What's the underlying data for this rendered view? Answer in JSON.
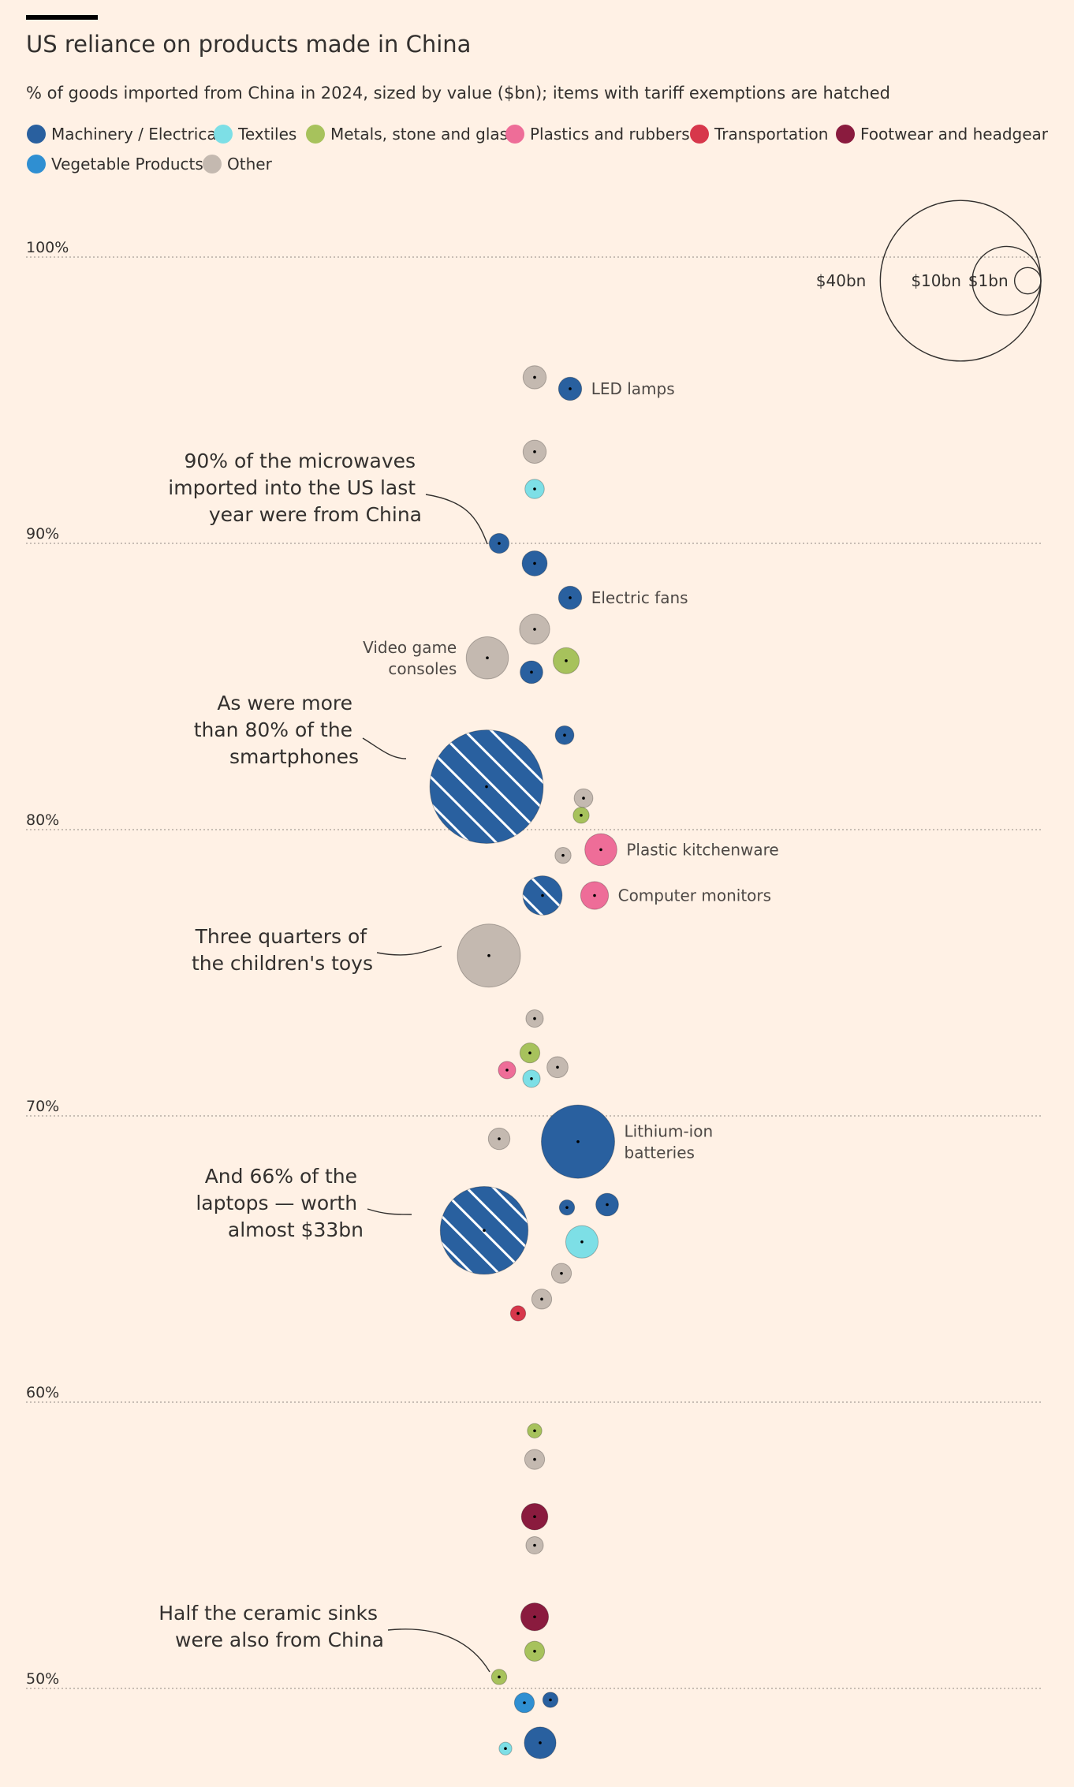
{
  "title": "US reliance on products made in China",
  "subtitle": "% of goods imported from China in 2024, sized by value ($bn); items with tariff exemptions are hatched",
  "legend": [
    {
      "label": "Machinery / Electrical",
      "color": "#29609f"
    },
    {
      "label": "Textiles",
      "color": "#7ddfe6"
    },
    {
      "label": "Metals, stone and glass",
      "color": "#a7c25c"
    },
    {
      "label": "Plastics and rubbers",
      "color": "#ee6d98"
    },
    {
      "label": "Transportation",
      "color": "#d7374b"
    },
    {
      "label": "Footwear and headgear",
      "color": "#8a1b3e"
    },
    {
      "label": "Vegetable Products",
      "color": "#2f8fd2"
    },
    {
      "label": "Other",
      "color": "#c4b9b0"
    }
  ],
  "size_key": [
    {
      "label": "$40bn",
      "value": 40
    },
    {
      "label": "$10bn",
      "value": 10
    },
    {
      "label": "$1bn",
      "value": 1
    }
  ],
  "annotations": {
    "microwaves": [
      "90% of the microwaves",
      "imported into the US last",
      "year were from China"
    ],
    "smartphones": [
      "As were more",
      "than 80% of the",
      "smartphones"
    ],
    "toys": [
      "Three quarters of",
      "the children's toys"
    ],
    "laptops": [
      "And 66% of the",
      "laptops — worth",
      "almost $33bn"
    ],
    "sinks": [
      "Half the ceramic sinks",
      "were also from China"
    ]
  },
  "chart_data": {
    "type": "scatter",
    "y_axis": {
      "ticks": [
        100,
        90,
        80,
        70,
        60,
        50
      ],
      "tick_labels": [
        "100%",
        "90%",
        "80%",
        "70%",
        "60%",
        "50%"
      ],
      "range": [
        48,
        100
      ]
    },
    "points": [
      {
        "share": 95.8,
        "value": 2.3,
        "category": "Other"
      },
      {
        "share": 95.4,
        "value": 2.3,
        "category": "Machinery / Electrical",
        "label": "LED lamps"
      },
      {
        "share": 93.2,
        "value": 2.3,
        "category": "Other"
      },
      {
        "share": 91.9,
        "value": 1.6,
        "category": "Textiles"
      },
      {
        "share": 90.0,
        "value": 1.7,
        "category": "Machinery / Electrical"
      },
      {
        "share": 89.3,
        "value": 2.7,
        "category": "Machinery / Electrical"
      },
      {
        "share": 88.1,
        "value": 2.3,
        "category": "Machinery / Electrical",
        "label": "Electric fans"
      },
      {
        "share": 87.0,
        "value": 3.9,
        "category": "Other"
      },
      {
        "share": 86.0,
        "value": 7.6,
        "category": "Other",
        "label": "Video game consoles"
      },
      {
        "share": 85.9,
        "value": 2.9,
        "category": "Metals, stone and glass"
      },
      {
        "share": 85.5,
        "value": 2.2,
        "category": "Machinery / Electrical"
      },
      {
        "share": 83.3,
        "value": 1.5,
        "category": "Machinery / Electrical"
      },
      {
        "share": 81.5,
        "value": 55,
        "category": "Machinery / Electrical",
        "hatched": true
      },
      {
        "share": 81.1,
        "value": 1.5,
        "category": "Other"
      },
      {
        "share": 80.5,
        "value": 1.1,
        "category": "Metals, stone and glass"
      },
      {
        "share": 79.3,
        "value": 4.4,
        "category": "Plastics and rubbers",
        "label": "Plastic kitchenware"
      },
      {
        "share": 79.1,
        "value": 1.1,
        "category": "Other"
      },
      {
        "share": 77.7,
        "value": 6.6,
        "category": "Machinery / Electrical",
        "hatched": true
      },
      {
        "share": 77.7,
        "value": 3.3,
        "category": "Plastics and rubbers",
        "label": "Computer monitors"
      },
      {
        "share": 75.6,
        "value": 17,
        "category": "Other"
      },
      {
        "share": 73.4,
        "value": 1.3,
        "category": "Other"
      },
      {
        "share": 72.2,
        "value": 1.7,
        "category": "Metals, stone and glass"
      },
      {
        "share": 71.7,
        "value": 1.9,
        "category": "Other"
      },
      {
        "share": 71.6,
        "value": 1.3,
        "category": "Plastics and rubbers"
      },
      {
        "share": 71.3,
        "value": 1.3,
        "category": "Textiles"
      },
      {
        "share": 69.2,
        "value": 2.0,
        "category": "Other"
      },
      {
        "share": 69.1,
        "value": 23,
        "category": "Machinery / Electrical",
        "label": "Lithium-ion batteries"
      },
      {
        "share": 66.8,
        "value": 1.0,
        "category": "Machinery / Electrical"
      },
      {
        "share": 66.9,
        "value": 2.2,
        "category": "Machinery / Electrical"
      },
      {
        "share": 66.0,
        "value": 33,
        "category": "Machinery / Electrical",
        "hatched": true
      },
      {
        "share": 65.6,
        "value": 4.5,
        "category": "Textiles"
      },
      {
        "share": 64.5,
        "value": 1.7,
        "category": "Other"
      },
      {
        "share": 63.6,
        "value": 1.7,
        "category": "Other"
      },
      {
        "share": 63.1,
        "value": 1.0,
        "category": "Transportation"
      },
      {
        "share": 59.0,
        "value": 0.9,
        "category": "Metals, stone and glass"
      },
      {
        "share": 58.0,
        "value": 1.7,
        "category": "Other"
      },
      {
        "share": 56.0,
        "value": 3.0,
        "category": "Footwear and headgear"
      },
      {
        "share": 55.0,
        "value": 1.3,
        "category": "Other"
      },
      {
        "share": 52.5,
        "value": 3.3,
        "category": "Footwear and headgear"
      },
      {
        "share": 51.3,
        "value": 1.7,
        "category": "Metals, stone and glass"
      },
      {
        "share": 50.4,
        "value": 1.0,
        "category": "Metals, stone and glass"
      },
      {
        "share": 49.6,
        "value": 1.0,
        "category": "Machinery / Electrical"
      },
      {
        "share": 49.5,
        "value": 1.7,
        "category": "Vegetable Products"
      },
      {
        "share": 47.9,
        "value": 0.7,
        "category": "Textiles"
      },
      {
        "share": 48.1,
        "value": 4.3,
        "category": "Machinery / Electrical"
      }
    ]
  }
}
